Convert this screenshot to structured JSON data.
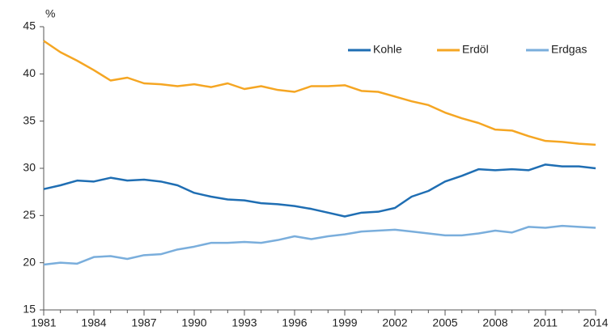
{
  "chart_data": {
    "type": "line",
    "y_label": "%",
    "x": [
      1981,
      1982,
      1983,
      1984,
      1985,
      1986,
      1987,
      1988,
      1989,
      1990,
      1991,
      1992,
      1993,
      1994,
      1995,
      1996,
      1997,
      1998,
      1999,
      2000,
      2001,
      2002,
      2003,
      2004,
      2005,
      2006,
      2007,
      2008,
      2009,
      2010,
      2011,
      2012,
      2013,
      2014
    ],
    "series": [
      {
        "name": "Kohle",
        "color": "#1f6eb3",
        "values": [
          27.8,
          28.2,
          28.7,
          28.6,
          29.0,
          28.7,
          28.8,
          28.6,
          28.2,
          27.4,
          27.0,
          26.7,
          26.6,
          26.3,
          26.2,
          26.0,
          25.7,
          25.3,
          24.9,
          25.3,
          25.4,
          25.8,
          27.0,
          27.6,
          28.6,
          29.2,
          29.9,
          29.8,
          29.9,
          29.8,
          30.4,
          30.2,
          30.2,
          30.0
        ]
      },
      {
        "name": "Erdöl",
        "color": "#f5a623",
        "values": [
          43.5,
          42.3,
          41.4,
          40.4,
          39.3,
          39.6,
          39.0,
          38.9,
          38.7,
          38.9,
          38.6,
          39.0,
          38.4,
          38.7,
          38.3,
          38.1,
          38.7,
          38.7,
          38.8,
          38.2,
          38.1,
          37.6,
          37.1,
          36.7,
          35.9,
          35.3,
          34.8,
          34.1,
          34.0,
          33.4,
          32.9,
          32.8,
          32.6,
          32.5
        ]
      },
      {
        "name": "Erdgas",
        "color": "#7aaedc",
        "values": [
          19.8,
          20.0,
          19.9,
          20.6,
          20.7,
          20.4,
          20.8,
          20.9,
          21.4,
          21.7,
          22.1,
          22.1,
          22.2,
          22.1,
          22.4,
          22.8,
          22.5,
          22.8,
          23.0,
          23.3,
          23.4,
          23.5,
          23.3,
          23.1,
          22.9,
          22.9,
          23.1,
          23.4,
          23.2,
          23.8,
          23.7,
          23.9,
          23.8,
          23.7
        ]
      }
    ],
    "xlim": [
      1981,
      2014
    ],
    "xticks": [
      1981,
      1984,
      1987,
      1990,
      1993,
      1996,
      1999,
      2002,
      2005,
      2008,
      2011,
      2014
    ],
    "ylim": [
      15,
      45
    ],
    "yticks": [
      15,
      20,
      25,
      30,
      35,
      40,
      45
    ],
    "grid": false
  }
}
